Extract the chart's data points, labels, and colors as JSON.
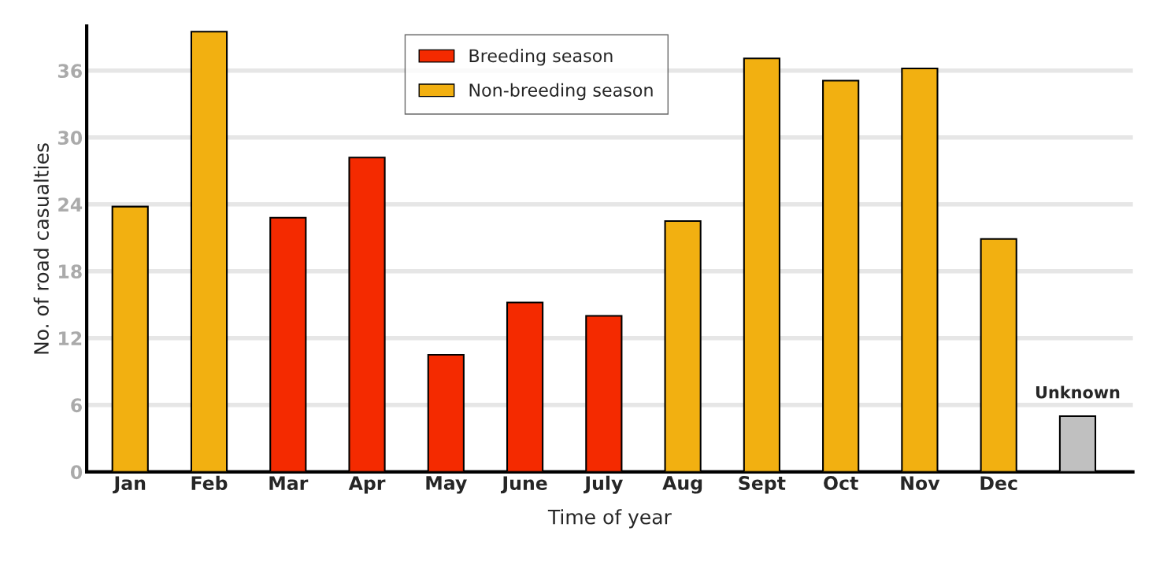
{
  "chart_data": {
    "type": "bar",
    "xlabel": "Time of year",
    "ylabel": "No. of road casualties",
    "categories": [
      "Jan",
      "Feb",
      "Mar",
      "Apr",
      "May",
      "June",
      "July",
      "Aug",
      "Sept",
      "Oct",
      "Nov",
      "Dec",
      null
    ],
    "series": [
      {
        "name": "Breeding season",
        "color": "#f42a00",
        "values": [
          null,
          null,
          22.8,
          28.2,
          10.5,
          15.2,
          14.0,
          null,
          null,
          null,
          null,
          null,
          null
        ]
      },
      {
        "name": "Non-breeding season",
        "color": "#f2b011",
        "values": [
          23.8,
          39.5,
          null,
          null,
          null,
          null,
          null,
          22.5,
          37.1,
          35.1,
          36.2,
          20.9,
          null
        ]
      },
      {
        "color": "#c0c0c0",
        "values": [
          null,
          null,
          null,
          null,
          null,
          null,
          null,
          null,
          null,
          null,
          null,
          null,
          5.0
        ]
      }
    ],
    "ylim": [
      0,
      40
    ],
    "yticks": [
      0,
      6,
      12,
      18,
      24,
      30,
      36
    ],
    "grid": "y",
    "legend": "top",
    "annotations": [
      {
        "text": "Unknown",
        "y": 5.0
      }
    ]
  }
}
